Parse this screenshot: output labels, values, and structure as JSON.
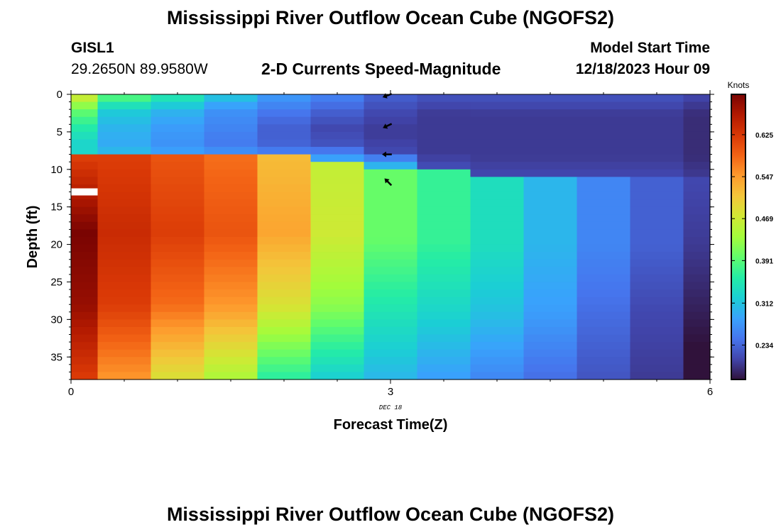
{
  "page": {
    "title": "Mississippi River Outflow Ocean Cube (NGOFS2)",
    "station_name": "GISL1",
    "station_coords": "29.2650N  89.9580W",
    "subtitle": "2-D Currents Speed-Magnitude",
    "model_start_label": "Model Start Time",
    "model_start_time": "12/18/2023 Hour 09",
    "footer_title": "Mississippi River Outflow Ocean Cube (NGOFS2)"
  },
  "colors": {
    "palette": [
      "#30123b",
      "#4145ab",
      "#4675ed",
      "#39a2fc",
      "#1bcfd4",
      "#24eca6",
      "#61fc6c",
      "#a4fc3b",
      "#d1e834",
      "#f3c63a",
      "#fe9b2d",
      "#f36315",
      "#d93806",
      "#b11901",
      "#7a0402"
    ]
  },
  "chart_data": {
    "type": "heatmap",
    "xlabel": "Forecast Time(Z)",
    "ylabel": "Depth (ft)",
    "xlim": [
      0,
      6
    ],
    "ylim": [
      38,
      0
    ],
    "x_ticks": [
      0,
      3,
      6
    ],
    "y_ticks": [
      0,
      5,
      10,
      15,
      20,
      25,
      30,
      35
    ],
    "x_date_label": "DEC 18",
    "colorbar": {
      "label": "Knots",
      "range": [
        0.17,
        0.7
      ],
      "tick_values": [
        0.234,
        0.312,
        0.391,
        0.469,
        0.547,
        0.625
      ],
      "tick_labels": [
        "0.234",
        "0.312",
        "0.391",
        "0.469",
        "0.547",
        "0.625"
      ]
    },
    "times": [
      0,
      0.5,
      1,
      1.5,
      2,
      2.5,
      3,
      3.5,
      4,
      4.5,
      5,
      5.5,
      6
    ],
    "surface_layer_bottom": [
      8.5,
      8.5,
      8.5,
      8.5,
      8.5,
      9,
      10,
      10.5,
      11,
      11,
      11,
      11,
      11
    ],
    "surface_speed": [
      [
        0.48,
        0.4,
        0.36,
        0.33,
        0.33
      ],
      [
        0.4,
        0.32,
        0.3,
        0.29,
        0.31
      ],
      [
        0.36,
        0.3,
        0.28,
        0.27,
        0.29
      ],
      [
        0.32,
        0.27,
        0.26,
        0.25,
        0.28
      ],
      [
        0.28,
        0.25,
        0.23,
        0.23,
        0.27
      ],
      [
        0.26,
        0.23,
        0.21,
        0.22,
        0.3
      ],
      [
        0.23,
        0.21,
        0.2,
        0.21,
        0.32
      ],
      [
        0.22,
        0.2,
        0.2,
        0.2,
        0.22
      ],
      [
        0.22,
        0.2,
        0.2,
        0.2,
        0.21
      ],
      [
        0.22,
        0.2,
        0.2,
        0.2,
        0.21
      ],
      [
        0.22,
        0.2,
        0.2,
        0.2,
        0.21
      ],
      [
        0.22,
        0.2,
        0.2,
        0.2,
        0.21
      ],
      [
        0.21,
        0.19,
        0.19,
        0.19,
        0.2
      ]
    ],
    "deep_speed": [
      [
        0.62,
        0.7,
        0.68,
        0.62
      ],
      [
        0.62,
        0.64,
        0.62,
        0.55
      ],
      [
        0.6,
        0.62,
        0.58,
        0.48
      ],
      [
        0.58,
        0.6,
        0.55,
        0.44
      ],
      [
        0.52,
        0.54,
        0.48,
        0.36
      ],
      [
        0.46,
        0.47,
        0.42,
        0.32
      ],
      [
        0.4,
        0.4,
        0.35,
        0.3
      ],
      [
        0.37,
        0.37,
        0.33,
        0.28
      ],
      [
        0.34,
        0.34,
        0.31,
        0.26
      ],
      [
        0.3,
        0.3,
        0.28,
        0.24
      ],
      [
        0.26,
        0.26,
        0.24,
        0.22
      ],
      [
        0.23,
        0.23,
        0.21,
        0.2
      ],
      [
        0.21,
        0.2,
        0.18,
        0.16
      ]
    ],
    "gap_segment": {
      "x": [
        0,
        0.25
      ],
      "depth": 13
    },
    "vectors": {
      "time": 3,
      "depths": [
        0,
        4,
        8,
        12
      ],
      "direction_deg": [
        200,
        205,
        180,
        135
      ]
    }
  }
}
